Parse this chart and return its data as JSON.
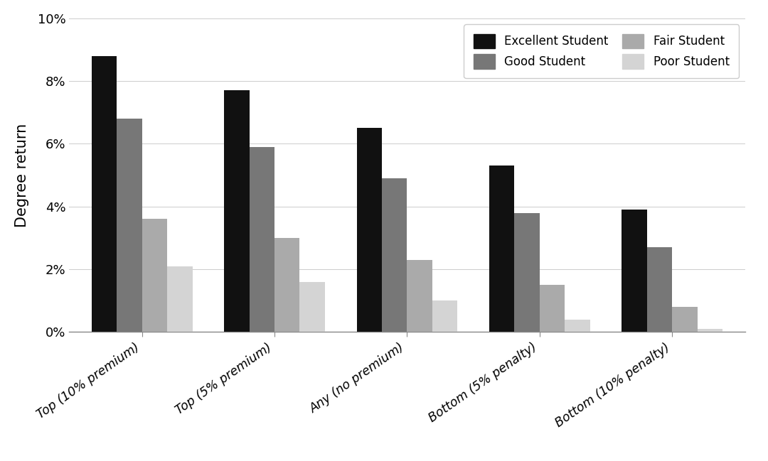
{
  "categories": [
    "Top (10% premium)",
    "Top (5% premium)",
    "Any (no premium)",
    "Bottom (5% penalty)",
    "Bottom (10% penalty)"
  ],
  "series": {
    "Excellent Student": [
      0.088,
      0.077,
      0.065,
      0.053,
      0.039
    ],
    "Good Student": [
      0.068,
      0.059,
      0.049,
      0.038,
      0.027
    ],
    "Fair Student": [
      0.036,
      0.03,
      0.023,
      0.015,
      0.008
    ],
    "Poor Student": [
      0.021,
      0.016,
      0.01,
      0.004,
      0.001
    ]
  },
  "colors": {
    "Excellent Student": "#111111",
    "Good Student": "#777777",
    "Fair Student": "#aaaaaa",
    "Poor Student": "#d4d4d4"
  },
  "ylabel": "Degree return",
  "ylim": [
    0,
    0.1
  ],
  "yticks": [
    0,
    0.02,
    0.04,
    0.06,
    0.08,
    0.1
  ],
  "ytick_labels": [
    "0%",
    "2%",
    "4%",
    "6%",
    "8%",
    "10%"
  ],
  "background_color": "#ffffff",
  "legend_row1": [
    "Excellent Student",
    "Good Student"
  ],
  "legend_row2": [
    "Fair Student",
    "Poor Student"
  ],
  "bar_width": 0.19,
  "figsize": [
    10.8,
    6.49
  ],
  "dpi": 100
}
